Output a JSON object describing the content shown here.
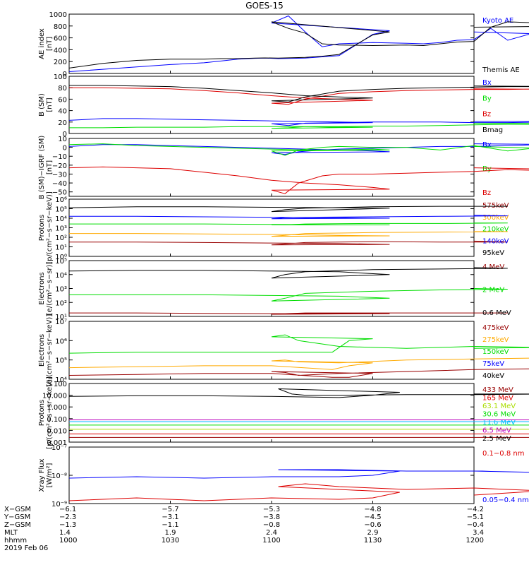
{
  "title": "GOES-15",
  "colors": {
    "black": "#000000",
    "blue": "#0000ff",
    "green": "#00dd00",
    "red": "#dd0000",
    "darkred": "#990000",
    "orange": "#ffaa00",
    "yellowgreen": "#aadd00",
    "cyan": "#00bbff",
    "magenta": "#bb00bb"
  },
  "chart_data": [
    {
      "type": "line",
      "ylabel": [
        "AE index",
        "[nT]"
      ],
      "ylim": [
        0,
        1000
      ],
      "scale": "linear",
      "yticks": [
        "0",
        "200",
        "400",
        "600",
        "800",
        "1000"
      ],
      "ytick_values": [
        0,
        200,
        400,
        600,
        800,
        1000
      ],
      "x": [
        1000,
        1010,
        1020,
        1030,
        1040,
        1045,
        1050,
        1055,
        1058,
        1062,
        1070,
        1075,
        1080,
        1090,
        1095,
        1100,
        1105,
        1110,
        1115,
        1120,
        1130,
        1140,
        1145,
        1150,
        1155,
        1160,
        1165,
        1170,
        1180,
        1190,
        1200
      ],
      "series": [
        {
          "name": "Kyoto AE",
          "color": "blue",
          "values": [
            30,
            70,
            110,
            150,
            180,
            210,
            240,
            255,
            260,
            250,
            260,
            280,
            300,
            660,
            720,
            850,
            970,
            700,
            450,
            500,
            520,
            510,
            500,
            520,
            560,
            570,
            760,
            560,
            720,
            650,
            700
          ]
        },
        {
          "name": "Themis AE",
          "color": "black",
          "values": [
            90,
            170,
            220,
            240,
            240,
            250,
            250,
            260,
            262,
            260,
            270,
            290,
            320,
            650,
            700,
            870,
            760,
            680,
            500,
            480,
            470,
            480,
            470,
            500,
            530,
            540,
            780,
            870,
            850,
            800,
            780
          ]
        }
      ]
    },
    {
      "type": "line",
      "ylabel": [
        "B (SM)",
        "[nT]"
      ],
      "ylim": [
        0,
        100
      ],
      "scale": "linear",
      "yticks": [
        "0",
        "20",
        "40",
        "60",
        "80",
        "100"
      ],
      "ytick_values": [
        0,
        20,
        40,
        60,
        80,
        100
      ],
      "x": [
        1000,
        1010,
        1020,
        1030,
        1040,
        1050,
        1060,
        1070,
        1080,
        1090,
        1100,
        1105,
        1110,
        1120,
        1130,
        1140,
        1150,
        1160,
        1170,
        1180,
        1190,
        1200
      ],
      "series": [
        {
          "name": "Bx",
          "color": "blue",
          "values": [
            23,
            26,
            26,
            25,
            24,
            23,
            22,
            21,
            20,
            19,
            17,
            14,
            18,
            19,
            20,
            20,
            20,
            19,
            19,
            20,
            21,
            21
          ]
        },
        {
          "name": "By",
          "color": "green",
          "values": [
            10,
            10,
            11,
            11,
            11,
            12,
            12,
            12,
            11,
            11,
            9,
            10,
            12,
            12,
            13,
            13,
            14,
            15,
            16,
            16,
            17,
            18
          ]
        },
        {
          "name": "Bz",
          "color": "red",
          "values": [
            80,
            80,
            79,
            78,
            75,
            71,
            66,
            62,
            60,
            58,
            53,
            51,
            60,
            70,
            73,
            75,
            76,
            77,
            77,
            78,
            77,
            78
          ]
        },
        {
          "name": "Bmag",
          "color": "black",
          "values": [
            84,
            84,
            83,
            82,
            79,
            75,
            71,
            66,
            64,
            62,
            57,
            55,
            64,
            74,
            77,
            79,
            80,
            81,
            82,
            82,
            82,
            83
          ]
        }
      ]
    },
    {
      "type": "line",
      "ylabel": [
        "B (SM)−IGRF (SM)",
        "[nT]"
      ],
      "ylim": [
        -55,
        10
      ],
      "scale": "linear",
      "yticks": [
        "10",
        "0",
        "−10",
        "−20",
        "−30",
        "−40",
        "−50"
      ],
      "ytick_values": [
        10,
        0,
        -10,
        -20,
        -30,
        -40,
        -50
      ],
      "x": [
        1000,
        1010,
        1020,
        1030,
        1040,
        1050,
        1060,
        1070,
        1080,
        1090,
        1095,
        1100,
        1104,
        1108,
        1115,
        1120,
        1130,
        1140,
        1150,
        1160,
        1170,
        1180,
        1190,
        1200
      ],
      "series": [
        {
          "name": "Bx",
          "color": "blue",
          "values": [
            1,
            3,
            3,
            2,
            1,
            0,
            -1,
            -2,
            -3,
            -4,
            -5,
            -6,
            -8,
            -5,
            -3,
            -2,
            -1,
            0,
            1,
            1,
            2,
            3,
            3,
            4
          ]
        },
        {
          "name": "By",
          "color": "green",
          "values": [
            3,
            4,
            2,
            1,
            0,
            -1,
            -2,
            -3,
            -3,
            -2,
            -3,
            -4,
            -9,
            -3,
            0,
            1,
            0,
            0,
            -3,
            2,
            -4,
            0,
            -2,
            1
          ]
        },
        {
          "name": "Bz",
          "color": "red",
          "values": [
            -23,
            -22,
            -23,
            -24,
            -28,
            -32,
            -37,
            -40,
            -42,
            -45,
            -47,
            -48,
            -52,
            -40,
            -32,
            -30,
            -30,
            -29,
            -28,
            -27,
            -25,
            -26,
            -25,
            -23
          ]
        }
      ]
    },
    {
      "type": "line",
      "ylabel": [
        "Protons",
        "[p/(cm²−s−sr−keV)]"
      ],
      "ylim_log10": [
        0,
        6
      ],
      "scale": "log",
      "yticks": [
        "10⁰",
        "10¹",
        "10²",
        "10³",
        "10⁴",
        "10⁵",
        "10⁶"
      ],
      "ytick_values": [
        0,
        1,
        2,
        3,
        4,
        5,
        6
      ],
      "x": [
        1000,
        1020,
        1040,
        1060,
        1080,
        1095,
        1100,
        1104,
        1110,
        1130,
        1150,
        1170,
        1200
      ],
      "series": [
        {
          "name": "575keV",
          "color": "darkred",
          "values": [
            1.5,
            1.5,
            1.45,
            1.4,
            1.35,
            1.25,
            1.2,
            1.3,
            1.45,
            1.55,
            1.5,
            1.5,
            1.6
          ]
        },
        {
          "name": "300keV",
          "color": "orange",
          "values": [
            2.4,
            2.4,
            2.35,
            2.3,
            2.2,
            2.15,
            2.1,
            2.2,
            2.4,
            2.5,
            2.55,
            2.6,
            2.6
          ]
        },
        {
          "name": "210keV",
          "color": "green",
          "values": [
            3.4,
            3.4,
            3.4,
            3.35,
            3.3,
            3.3,
            3.3,
            3.3,
            3.4,
            3.45,
            3.45,
            3.5,
            3.5
          ]
        },
        {
          "name": "140keV",
          "color": "blue",
          "values": [
            4.2,
            4.2,
            4.15,
            4.1,
            4.05,
            4.0,
            3.95,
            4.05,
            4.1,
            4.15,
            4.2,
            4.25,
            4.3
          ]
        },
        {
          "name": "95keV",
          "color": "black",
          "values": [
            5.1,
            5.2,
            5.2,
            5.15,
            5.1,
            5.05,
            4.7,
            4.9,
            5.05,
            5.2,
            5.25,
            5.25,
            5.25
          ]
        }
      ]
    },
    {
      "type": "line",
      "ylabel": [
        "Electrons",
        "[e/(cm²−s−sr)]"
      ],
      "ylim_log10": [
        1,
        5
      ],
      "scale": "log",
      "yticks": [
        "10¹",
        "10²",
        "10³",
        "10⁴",
        "10⁵"
      ],
      "ytick_values": [
        1,
        2,
        3,
        4,
        5
      ],
      "x": [
        1000,
        1020,
        1040,
        1060,
        1080,
        1095,
        1100,
        1104,
        1110,
        1130,
        1150,
        1170,
        1200
      ],
      "series": [
        {
          "name": "4 MeV",
          "color": "darkred",
          "values": [
            1.25,
            1.25,
            1.22,
            1.2,
            1.2,
            1.2,
            1.15,
            1.2,
            1.25,
            1.25,
            1.25,
            1.25,
            1.25
          ]
        },
        {
          "name": "2 MeV",
          "color": "green",
          "values": [
            2.55,
            2.55,
            2.55,
            2.5,
            2.45,
            2.3,
            2.1,
            2.3,
            2.65,
            2.8,
            2.9,
            2.95,
            3.0
          ]
        },
        {
          "name": "0.6 MeV",
          "color": "black",
          "values": [
            4.25,
            4.3,
            4.3,
            4.25,
            4.2,
            4.0,
            3.75,
            4.0,
            4.2,
            4.35,
            4.4,
            4.45,
            4.5
          ]
        }
      ]
    },
    {
      "type": "line",
      "ylabel": [
        "Electrons",
        "[e/(cm²−s−sr−keV)]"
      ],
      "ylim_log10": [
        4,
        7
      ],
      "scale": "log",
      "yticks": [
        "10⁴",
        "10⁵",
        "10⁶",
        "10⁷"
      ],
      "ytick_values": [
        4,
        5,
        6,
        7
      ],
      "x": [
        1000,
        1020,
        1040,
        1060,
        1078,
        1083,
        1090,
        1100,
        1104,
        1108,
        1120,
        1140,
        1160,
        1180,
        1200
      ],
      "series": [
        {
          "name": "475keV",
          "color": "darkred",
          "values": [
            4.2,
            4.25,
            4.3,
            4.3,
            4.1,
            4.1,
            4.3,
            4.4,
            4.35,
            4.2,
            4.3,
            4.4,
            4.5,
            4.55,
            4.5
          ]
        },
        {
          "name": "275keV",
          "color": "orange",
          "values": [
            4.6,
            4.65,
            4.7,
            4.7,
            4.5,
            4.7,
            4.85,
            4.95,
            5.0,
            4.9,
            4.85,
            5.0,
            5.05,
            5.1,
            5.05
          ]
        },
        {
          "name": "150keV",
          "color": "green",
          "values": [
            5.35,
            5.4,
            5.4,
            5.4,
            5.4,
            6.0,
            6.1,
            6.2,
            6.3,
            6.0,
            5.7,
            5.6,
            5.7,
            5.65,
            5.6
          ]
        },
        {
          "name": "75keV",
          "color": "blue",
          "values": [
            0,
            0,
            0,
            0,
            0,
            0,
            0,
            0,
            0,
            0,
            0,
            0,
            0,
            0,
            0
          ]
        },
        {
          "name": "40keV",
          "color": "black",
          "values": [
            0,
            0,
            0,
            0,
            0,
            0,
            0,
            0,
            0,
            0,
            0,
            0,
            0,
            0,
            0
          ]
        }
      ]
    },
    {
      "type": "line",
      "ylabel": [
        "Protons",
        "[p/(cm²−s−sr−keV)]"
      ],
      "ylim_log10": [
        -3,
        2
      ],
      "scale": "log",
      "yticks": [
        "0.001",
        "0.010",
        "0.100",
        "1.000",
        "10.000",
        "100"
      ],
      "ytick_values": [
        -3,
        -2,
        -1,
        0,
        1,
        2
      ],
      "x": [
        1000,
        1020,
        1040,
        1060,
        1080,
        1090,
        1098,
        1102,
        1106,
        1110,
        1120,
        1140,
        1160,
        1180,
        1200
      ],
      "series": [
        {
          "name": "433 MeV",
          "color": "darkred",
          "values": [
            -2.6,
            -2.6,
            -2.6,
            -2.6,
            -2.6,
            -2.6,
            -2.6,
            -2.6,
            -2.6,
            -2.6,
            -2.6,
            -2.6,
            -2.6,
            -2.6,
            -2.6
          ]
        },
        {
          "name": "165 MeV",
          "color": "red",
          "values": [
            -2.3,
            -2.3,
            -2.3,
            -2.3,
            -2.3,
            -2.3,
            -2.3,
            -2.3,
            -2.3,
            -2.3,
            -2.3,
            -2.3,
            -2.3,
            -2.3,
            -2.3
          ]
        },
        {
          "name": "63.1 MeV",
          "color": "yellowgreen",
          "values": [
            -1.9,
            -1.9,
            -1.9,
            -1.9,
            -1.9,
            -1.9,
            -1.9,
            -1.9,
            -1.9,
            -1.9,
            -1.9,
            -1.9,
            -1.9,
            -1.9,
            -1.9
          ]
        },
        {
          "name": "30.6 MeV",
          "color": "green",
          "values": [
            -1.55,
            -1.55,
            -1.55,
            -1.55,
            -1.55,
            -1.55,
            -1.55,
            -1.55,
            -1.55,
            -1.55,
            -1.55,
            -1.55,
            -1.55,
            -1.55,
            -1.55
          ]
        },
        {
          "name": "11.6 MeV",
          "color": "cyan",
          "values": [
            -1.25,
            -1.25,
            -1.25,
            -1.25,
            -1.25,
            -1.25,
            -1.25,
            -1.25,
            -1.25,
            -1.25,
            -1.25,
            -1.25,
            -1.25,
            -1.25,
            -1.25
          ]
        },
        {
          "name": "6.5 MeV",
          "color": "magenta",
          "values": [
            -1.1,
            -1.1,
            -1.1,
            -1.1,
            -1.1,
            -1.1,
            -1.1,
            -1.1,
            -1.1,
            -1.1,
            -1.1,
            -1.1,
            -1.1,
            -1.1,
            -1.1
          ]
        },
        {
          "name": "2.5 MeV",
          "color": "black",
          "values": [
            0.9,
            0.95,
            0.95,
            0.9,
            0.8,
            1.0,
            1.25,
            1.55,
            1.1,
            1.0,
            1.0,
            1.05,
            1.05,
            1.1,
            1.1
          ]
        }
      ]
    },
    {
      "type": "line",
      "ylabel": [
        "Xray Flux",
        "[W/m²]"
      ],
      "ylim_log10": [
        -9,
        -7
      ],
      "scale": "log",
      "yticks": [
        "10⁻⁹",
        "10⁻⁸",
        "10⁻⁷"
      ],
      "ytick_values": [
        -9,
        -8,
        -7
      ],
      "x": [
        1000,
        1020,
        1040,
        1060,
        1080,
        1090,
        1098,
        1102,
        1110,
        1120,
        1140,
        1160,
        1180,
        1200
      ],
      "series": [
        {
          "name": "0.1−0.8 nm",
          "color": "red",
          "values": [
            -8.9,
            -8.8,
            -8.9,
            -8.8,
            -8.85,
            -8.8,
            -8.6,
            -8.4,
            -8.3,
            -8.4,
            -8.5,
            -8.45,
            -8.55,
            -8.7
          ]
        },
        {
          "name": "0.05−0.4 nm",
          "color": "blue",
          "values": [
            -8.1,
            -8.05,
            -8.1,
            -8.05,
            -8.05,
            -8.0,
            -7.85,
            -7.8,
            -7.8,
            -7.8,
            -7.85,
            -7.85,
            -7.9,
            -7.85
          ]
        }
      ]
    }
  ],
  "x_axis": {
    "ticks": [
      1000,
      1030,
      1100,
      1130,
      1200
    ],
    "rows": [
      {
        "label": "X−GSM",
        "values": [
          "−6.1",
          "−5.7",
          "−5.3",
          "−4.8",
          "−4.2"
        ]
      },
      {
        "label": "Y−GSM",
        "values": [
          "−2.3",
          "−3.1",
          "−3.8",
          "−4.5",
          "−5.1"
        ]
      },
      {
        "label": "Z−GSM",
        "values": [
          "−1.3",
          "−1.1",
          "−0.8",
          "−0.6",
          "−0.4"
        ]
      },
      {
        "label": "MLT",
        "values": [
          "1.4",
          "1.9",
          "2.4",
          "2.9",
          "3.4"
        ]
      },
      {
        "label": "hhmm",
        "values": [
          "1000",
          "1030",
          "1100",
          "1130",
          "1200"
        ]
      }
    ],
    "date": "2019 Feb 06"
  }
}
